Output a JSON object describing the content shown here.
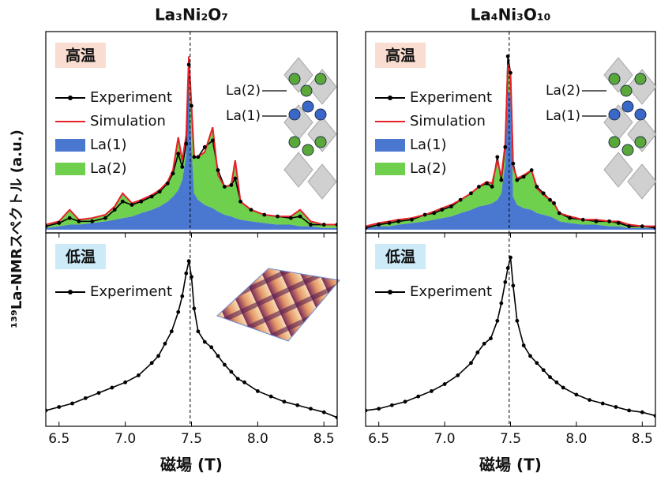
{
  "ylabel": "¹³⁹La-NMRスペクトル (a.u.)",
  "chart_data": [
    {
      "type": "line",
      "title": "La₃Ni₂O₇",
      "label": "高温",
      "label_color": "#f9ddd0",
      "inset_labels": [
        "La(2)",
        "La(1)"
      ],
      "xlim": [
        6.4,
        8.6
      ],
      "ylim": [
        -0.02,
        1.2
      ],
      "vline": 7.49,
      "x": [
        6.4,
        6.5,
        6.58,
        6.65,
        6.75,
        6.85,
        6.92,
        6.98,
        7.05,
        7.12,
        7.2,
        7.26,
        7.32,
        7.36,
        7.4,
        7.43,
        7.46,
        7.48,
        7.5,
        7.52,
        7.55,
        7.6,
        7.66,
        7.7,
        7.75,
        7.8,
        7.83,
        7.87,
        7.95,
        8.05,
        8.15,
        8.25,
        8.32,
        8.4,
        8.5,
        8.6
      ],
      "series": [
        {
          "name": "Experiment",
          "color": "#000000",
          "style": "line-marker",
          "values": [
            0.02,
            0.04,
            0.07,
            0.05,
            0.05,
            0.07,
            0.12,
            0.17,
            0.15,
            0.17,
            0.2,
            0.23,
            0.28,
            0.34,
            0.46,
            0.38,
            0.52,
            1.0,
            0.75,
            0.44,
            0.44,
            0.5,
            0.54,
            0.36,
            0.26,
            0.27,
            0.31,
            0.17,
            0.12,
            0.09,
            0.08,
            0.07,
            0.08,
            0.03,
            0.03,
            0.03
          ]
        },
        {
          "name": "Simulation",
          "color": "#e8202a",
          "style": "line",
          "values": [
            0.03,
            0.05,
            0.12,
            0.06,
            0.07,
            0.09,
            0.14,
            0.22,
            0.16,
            0.18,
            0.21,
            0.24,
            0.29,
            0.36,
            0.56,
            0.42,
            0.57,
            1.05,
            0.75,
            0.44,
            0.44,
            0.47,
            0.62,
            0.33,
            0.26,
            0.27,
            0.42,
            0.17,
            0.12,
            0.09,
            0.08,
            0.08,
            0.12,
            0.05,
            0.03,
            0.03
          ]
        },
        {
          "name": "La(1)",
          "color": "#4a78d0",
          "style": "fill",
          "values": [
            0.01,
            0.02,
            0.03,
            0.03,
            0.04,
            0.05,
            0.06,
            0.07,
            0.08,
            0.1,
            0.12,
            0.14,
            0.17,
            0.2,
            0.24,
            0.3,
            0.45,
            0.9,
            0.5,
            0.22,
            0.18,
            0.15,
            0.13,
            0.11,
            0.09,
            0.08,
            0.07,
            0.06,
            0.05,
            0.04,
            0.03,
            0.03,
            0.02,
            0.02,
            0.01,
            0.01
          ]
        },
        {
          "name": "La(2)",
          "color": "#6ed04c",
          "style": "fill",
          "stacked": true,
          "values": [
            0.02,
            0.03,
            0.09,
            0.03,
            0.03,
            0.04,
            0.08,
            0.15,
            0.08,
            0.08,
            0.09,
            0.1,
            0.12,
            0.16,
            0.32,
            0.12,
            0.12,
            0.15,
            0.25,
            0.22,
            0.26,
            0.32,
            0.49,
            0.22,
            0.17,
            0.19,
            0.35,
            0.11,
            0.07,
            0.05,
            0.05,
            0.05,
            0.1,
            0.03,
            0.02,
            0.02
          ]
        }
      ]
    },
    {
      "type": "line",
      "title": "La₄Ni₃O₁₀",
      "label": "高温",
      "label_color": "#f9ddd0",
      "inset_labels": [
        "La(2)",
        "La(1)"
      ],
      "xlim": [
        6.4,
        8.6
      ],
      "ylim": [
        -0.02,
        1.2
      ],
      "vline": 7.49,
      "x": [
        6.4,
        6.5,
        6.58,
        6.65,
        6.75,
        6.85,
        6.92,
        6.98,
        7.05,
        7.12,
        7.2,
        7.26,
        7.32,
        7.36,
        7.4,
        7.43,
        7.46,
        7.48,
        7.5,
        7.52,
        7.55,
        7.6,
        7.66,
        7.7,
        7.75,
        7.8,
        7.83,
        7.87,
        7.95,
        8.05,
        8.15,
        8.25,
        8.32,
        8.4,
        8.5,
        8.6
      ],
      "series": [
        {
          "name": "Experiment",
          "color": "#000000",
          "style": "line-marker",
          "values": [
            0.01,
            0.03,
            0.04,
            0.05,
            0.06,
            0.09,
            0.1,
            0.12,
            0.14,
            0.18,
            0.22,
            0.26,
            0.28,
            0.26,
            0.44,
            0.3,
            0.5,
            1.05,
            0.95,
            0.4,
            0.3,
            0.32,
            0.36,
            0.26,
            0.22,
            0.18,
            0.16,
            0.1,
            0.07,
            0.06,
            0.05,
            0.05,
            0.04,
            0.02,
            0.02,
            0.01
          ]
        },
        {
          "name": "Simulation",
          "color": "#e8202a",
          "style": "line",
          "values": [
            0.02,
            0.04,
            0.05,
            0.06,
            0.07,
            0.09,
            0.11,
            0.13,
            0.15,
            0.18,
            0.22,
            0.26,
            0.29,
            0.28,
            0.42,
            0.32,
            0.52,
            1.0,
            0.95,
            0.38,
            0.31,
            0.33,
            0.36,
            0.25,
            0.21,
            0.18,
            0.16,
            0.1,
            0.08,
            0.06,
            0.06,
            0.05,
            0.05,
            0.03,
            0.02,
            0.02
          ]
        },
        {
          "name": "La(1)",
          "color": "#4a78d0",
          "style": "fill",
          "values": [
            0.01,
            0.02,
            0.02,
            0.03,
            0.04,
            0.05,
            0.06,
            0.07,
            0.08,
            0.1,
            0.12,
            0.14,
            0.15,
            0.16,
            0.18,
            0.22,
            0.4,
            0.85,
            0.8,
            0.2,
            0.15,
            0.13,
            0.12,
            0.1,
            0.09,
            0.08,
            0.07,
            0.05,
            0.04,
            0.03,
            0.03,
            0.02,
            0.02,
            0.01,
            0.01,
            0.01
          ]
        },
        {
          "name": "La(2)",
          "color": "#6ed04c",
          "style": "fill",
          "stacked": true,
          "values": [
            0.01,
            0.02,
            0.03,
            0.03,
            0.03,
            0.04,
            0.05,
            0.06,
            0.07,
            0.08,
            0.1,
            0.12,
            0.14,
            0.12,
            0.24,
            0.1,
            0.12,
            0.15,
            0.15,
            0.18,
            0.16,
            0.2,
            0.24,
            0.15,
            0.12,
            0.1,
            0.09,
            0.05,
            0.04,
            0.03,
            0.03,
            0.03,
            0.03,
            0.02,
            0.01,
            0.01
          ]
        }
      ]
    },
    {
      "type": "line",
      "label": "低温",
      "label_color": "#cdeaf8",
      "xlabel": "磁場 (T)",
      "xlim": [
        6.4,
        8.6
      ],
      "ylim": [
        0,
        1.1
      ],
      "vline": 7.49,
      "xticks": [
        6.5,
        {
          "value": 7,
          "label": "7.0"
        },
        7.5,
        {
          "value": 8,
          "label": "8.0"
        },
        8.5
      ],
      "x": [
        6.4,
        6.5,
        6.6,
        6.7,
        6.8,
        6.9,
        7.0,
        7.1,
        7.2,
        7.25,
        7.3,
        7.35,
        7.4,
        7.43,
        7.46,
        7.48,
        7.5,
        7.52,
        7.55,
        7.6,
        7.65,
        7.7,
        7.75,
        7.8,
        7.85,
        7.9,
        8.0,
        8.1,
        8.2,
        8.3,
        8.4,
        8.5,
        8.6
      ],
      "series": [
        {
          "name": "Experiment",
          "color": "#000000",
          "style": "line-marker",
          "values": [
            0.09,
            0.11,
            0.13,
            0.16,
            0.19,
            0.22,
            0.25,
            0.29,
            0.36,
            0.4,
            0.47,
            0.54,
            0.65,
            0.74,
            0.87,
            0.94,
            0.85,
            0.67,
            0.54,
            0.48,
            0.45,
            0.4,
            0.35,
            0.31,
            0.27,
            0.25,
            0.2,
            0.17,
            0.14,
            0.12,
            0.1,
            0.08,
            0.05
          ]
        }
      ]
    },
    {
      "type": "line",
      "label": "低温",
      "label_color": "#cdeaf8",
      "xlabel": "磁場 (T)",
      "xlim": [
        6.4,
        8.6
      ],
      "ylim": [
        0,
        1.1
      ],
      "vline": 7.49,
      "xticks": [
        6.5,
        {
          "value": 7,
          "label": "7.0"
        },
        7.5,
        {
          "value": 8,
          "label": "8.0"
        },
        8.5
      ],
      "x": [
        6.4,
        6.5,
        6.6,
        6.7,
        6.8,
        6.9,
        7.0,
        7.1,
        7.2,
        7.25,
        7.3,
        7.35,
        7.4,
        7.43,
        7.46,
        7.48,
        7.5,
        7.52,
        7.55,
        7.6,
        7.65,
        7.7,
        7.75,
        7.8,
        7.85,
        7.9,
        8.0,
        8.1,
        8.2,
        8.3,
        8.4,
        8.5,
        8.6
      ],
      "series": [
        {
          "name": "Experiment",
          "color": "#000000",
          "style": "line-marker",
          "values": [
            0.09,
            0.1,
            0.12,
            0.14,
            0.17,
            0.2,
            0.24,
            0.29,
            0.36,
            0.42,
            0.47,
            0.5,
            0.6,
            0.7,
            0.82,
            0.9,
            0.96,
            0.8,
            0.6,
            0.46,
            0.4,
            0.36,
            0.32,
            0.28,
            0.25,
            0.22,
            0.18,
            0.15,
            0.13,
            0.11,
            0.09,
            0.08,
            0.06
          ]
        }
      ]
    }
  ]
}
